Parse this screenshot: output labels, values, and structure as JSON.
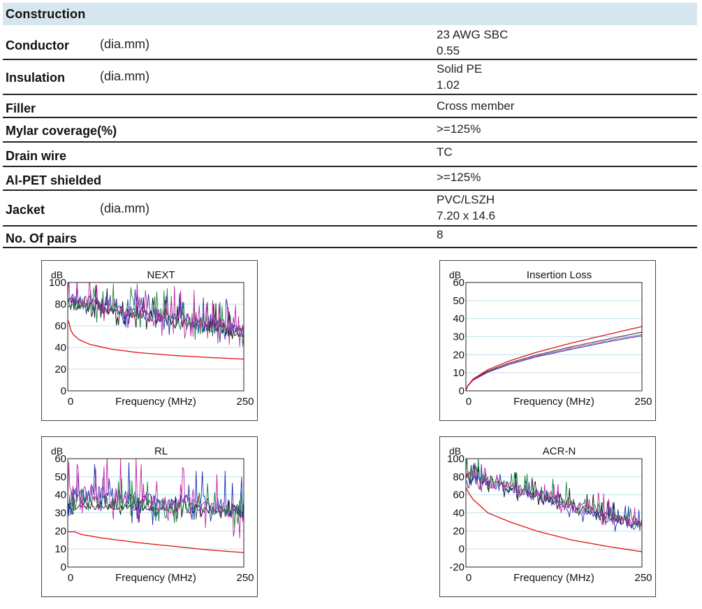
{
  "construction": {
    "title": "Construction",
    "rows": [
      {
        "label": "Conductor",
        "unit": "(dia.mm)",
        "values": [
          "23 AWG SBC",
          "0.55"
        ]
      },
      {
        "label": "Insulation",
        "unit": "(dia.mm)",
        "values": [
          "Solid PE",
          "1.02"
        ]
      },
      {
        "label": "Filler",
        "unit": "",
        "values": [
          "Cross member"
        ]
      },
      {
        "label": "Mylar coverage(%)",
        "unit": "",
        "values": [
          ">=125%"
        ]
      },
      {
        "label": "Drain wire",
        "unit": "",
        "values": [
          "TC"
        ]
      },
      {
        "label": "Al-PET shielded",
        "unit": "",
        "values": [
          ">=125%"
        ]
      },
      {
        "label": "Jacket",
        "unit": "(dia.mm)",
        "values": [
          "PVC/LSZH",
          "7.20 x 14.6"
        ]
      },
      {
        "label": "No. Of pairs",
        "unit": "",
        "values": [
          "8"
        ]
      }
    ]
  },
  "chart_data": [
    {
      "id": "next",
      "type": "line",
      "title": "NEXT",
      "ylabel": "dB",
      "xlabel": "Frequency (MHz)",
      "xlim": [
        0,
        250
      ],
      "ylim": [
        0,
        100
      ],
      "yticks": [
        0,
        20,
        40,
        60,
        80,
        100
      ],
      "xticks": [
        0,
        250
      ],
      "grid": true,
      "series": [
        {
          "role": "limit",
          "color": "#e01010",
          "x": [
            1,
            4,
            8,
            16,
            31.25,
            62.5,
            100,
            150,
            200,
            250
          ],
          "y": [
            65.3,
            56.3,
            51.8,
            47.2,
            42.9,
            38.4,
            35.3,
            32.7,
            30.8,
            29.3
          ]
        },
        {
          "role": "measured",
          "color": "#111111",
          "x": [
            0,
            250
          ],
          "y": [
            82,
            55
          ],
          "amp": 10,
          "seed": 11
        },
        {
          "role": "measured",
          "color": "#1a2fb0",
          "x": [
            0,
            250
          ],
          "y": [
            86,
            56
          ],
          "amp": 11,
          "seed": 23
        },
        {
          "role": "measured",
          "color": "#15803d",
          "x": [
            0,
            250
          ],
          "y": [
            84,
            57
          ],
          "amp": 11,
          "seed": 37
        },
        {
          "role": "measured",
          "color": "#c026a8",
          "x": [
            0,
            250
          ],
          "y": [
            85,
            58
          ],
          "amp": 12,
          "seed": 51
        }
      ]
    },
    {
      "id": "il",
      "type": "line",
      "title": "Insertion Loss",
      "ylabel": "dB",
      "xlabel": "Frequency (MHz)",
      "xlim": [
        0,
        250
      ],
      "ylim": [
        0,
        60
      ],
      "yticks": [
        0,
        10,
        20,
        30,
        40,
        50,
        60
      ],
      "xticks": [
        0,
        250
      ],
      "grid": true,
      "series": [
        {
          "role": "limit",
          "color": "#e01010",
          "x": [
            0,
            1,
            10,
            31.25,
            62.5,
            100,
            150,
            200,
            250
          ],
          "y": [
            0,
            2.0,
            6.5,
            11.7,
            16.7,
            21.3,
            26.5,
            31.1,
            35.6
          ]
        },
        {
          "role": "measured",
          "color": "#111111",
          "x": [
            0,
            1,
            10,
            31.25,
            62.5,
            100,
            150,
            200,
            250
          ],
          "y": [
            0,
            1.9,
            6.2,
            11.0,
            15.6,
            19.8,
            24.4,
            28.5,
            32.5
          ]
        },
        {
          "role": "measured",
          "color": "#1a2fb0",
          "x": [
            0,
            1,
            10,
            31.25,
            62.5,
            100,
            150,
            200,
            250
          ],
          "y": [
            0,
            1.8,
            5.8,
            10.3,
            14.7,
            18.8,
            23.0,
            27.0,
            30.5
          ]
        },
        {
          "role": "measured",
          "color": "#c026a8",
          "x": [
            0,
            1,
            10,
            31.25,
            62.5,
            100,
            150,
            200,
            250
          ],
          "y": [
            0,
            1.8,
            6.0,
            10.6,
            15.0,
            19.2,
            23.6,
            27.6,
            31.2
          ]
        }
      ]
    },
    {
      "id": "rl",
      "type": "line",
      "title": "RL",
      "ylabel": "dB",
      "xlabel": "Frequency (MHz)",
      "xlim": [
        0,
        250
      ],
      "ylim": [
        0,
        60
      ],
      "yticks": [
        0,
        10,
        20,
        30,
        40,
        50,
        60
      ],
      "xticks": [
        0,
        250
      ],
      "grid": true,
      "series": [
        {
          "role": "limit",
          "color": "#e01010",
          "x": [
            0,
            10,
            20,
            50,
            100,
            150,
            200,
            250
          ],
          "y": [
            19.5,
            19.5,
            18.0,
            16.0,
            13.5,
            11.5,
            9.5,
            8.0
          ]
        },
        {
          "role": "measured",
          "color": "#111111",
          "x": [
            0,
            20,
            250
          ],
          "y": [
            30,
            34,
            31
          ],
          "amp": 3,
          "seed": 7
        },
        {
          "role": "measured",
          "color": "#1a2fb0",
          "x": [
            0,
            250
          ],
          "y": [
            42,
            33
          ],
          "amp": 9,
          "seed": 19
        },
        {
          "role": "measured",
          "color": "#c026a8",
          "x": [
            0,
            250
          ],
          "y": [
            41,
            32
          ],
          "amp": 10,
          "seed": 29
        },
        {
          "role": "measured",
          "color": "#15803d",
          "x": [
            0,
            250
          ],
          "y": [
            38,
            31
          ],
          "amp": 6,
          "seed": 43
        }
      ]
    },
    {
      "id": "acrn",
      "type": "line",
      "title": "ACR-N",
      "ylabel": "dB",
      "xlabel": "Frequency (MHz)",
      "xlim": [
        0,
        250
      ],
      "ylim": [
        -20,
        100
      ],
      "yticks": [
        -20,
        0,
        20,
        40,
        60,
        80,
        100
      ],
      "xticks": [
        0,
        250
      ],
      "grid": true,
      "series": [
        {
          "role": "limit",
          "color": "#e01010",
          "x": [
            0,
            4,
            10,
            31.25,
            62.5,
            100,
            150,
            200,
            250
          ],
          "y": [
            68,
            62,
            55,
            40,
            30,
            20,
            10,
            3,
            -3
          ]
        },
        {
          "role": "measured",
          "color": "#111111",
          "x": [
            0,
            250
          ],
          "y": [
            82,
            26
          ],
          "amp": 8,
          "seed": 13
        },
        {
          "role": "measured",
          "color": "#1a2fb0",
          "x": [
            0,
            250
          ],
          "y": [
            80,
            24
          ],
          "amp": 8,
          "seed": 31
        },
        {
          "role": "measured",
          "color": "#15803d",
          "x": [
            0,
            250
          ],
          "y": [
            84,
            30
          ],
          "amp": 9,
          "seed": 41
        },
        {
          "role": "measured",
          "color": "#c026a8",
          "x": [
            0,
            250
          ],
          "y": [
            83,
            28
          ],
          "amp": 9,
          "seed": 59
        }
      ]
    }
  ]
}
